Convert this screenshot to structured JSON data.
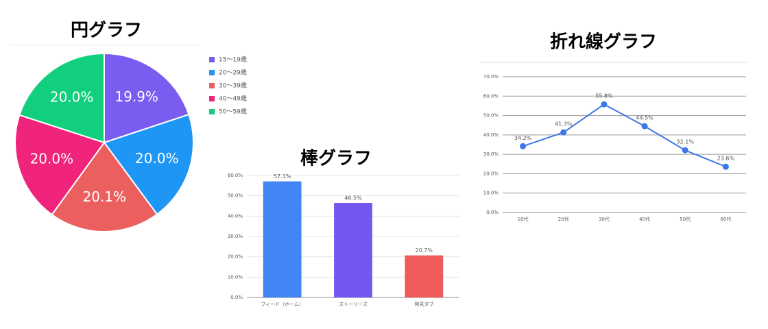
{
  "chart_data": [
    {
      "type": "pie",
      "title": "円グラフ",
      "categories": [
        "15〜19歳",
        "20〜29歳",
        "30〜39歳",
        "40〜49歳",
        "50〜59歳"
      ],
      "values": [
        19.9,
        20.0,
        20.1,
        20.0,
        20.0
      ],
      "value_labels": [
        "19.9%",
        "20.0%",
        "20.1%",
        "20.0%",
        "20.0%"
      ],
      "colors": [
        "#7b5cf0",
        "#1e96f5",
        "#ec5f5f",
        "#f0247a",
        "#12cf7e"
      ],
      "legend": "right"
    },
    {
      "type": "bar",
      "title": "棒グラフ",
      "categories": [
        "フィード（ホーム）",
        "ストーリーズ",
        "発見タブ"
      ],
      "values": [
        57.1,
        46.5,
        20.7
      ],
      "value_labels": [
        "57.1%",
        "46.5%",
        "20.7%"
      ],
      "colors": [
        "#4285f4",
        "#7357f0",
        "#f05a5a"
      ],
      "ylim": [
        0,
        60
      ],
      "yticks": [
        {
          "value": 0,
          "label": "0.0%"
        },
        {
          "value": 10,
          "label": "10.0%"
        },
        {
          "value": 20,
          "label": "20.0%"
        },
        {
          "value": 30,
          "label": "30.0%"
        },
        {
          "value": 40,
          "label": "40.0%"
        },
        {
          "value": 50,
          "label": "50.0%"
        },
        {
          "value": 60,
          "label": "60.0%"
        }
      ],
      "grid": true
    },
    {
      "type": "line",
      "title": "折れ線グラフ",
      "categories": [
        "10代",
        "20代",
        "30代",
        "40代",
        "50代",
        "60代"
      ],
      "values": [
        34.2,
        41.3,
        55.8,
        44.5,
        32.1,
        23.6
      ],
      "value_labels": [
        "34.2%",
        "41.3%",
        "55.8%",
        "44.5%",
        "32.1%",
        "23.6%"
      ],
      "color": "#3b78e7",
      "ylim": [
        0,
        70
      ],
      "yticks": [
        {
          "value": 0,
          "label": "0.0%"
        },
        {
          "value": 10,
          "label": "10.0%"
        },
        {
          "value": 20,
          "label": "20.0%"
        },
        {
          "value": 30,
          "label": "30.0%"
        },
        {
          "value": 40,
          "label": "40.0%"
        },
        {
          "value": 50,
          "label": "50.0%"
        },
        {
          "value": 60,
          "label": "60.0%"
        },
        {
          "value": 70,
          "label": "70.0%"
        }
      ],
      "grid": true
    }
  ]
}
